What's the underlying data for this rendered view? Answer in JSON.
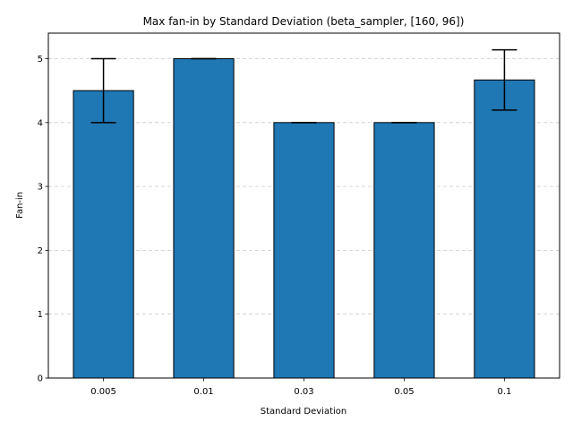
{
  "chart_data": {
    "type": "bar",
    "title": "Max fan-in by Standard Deviation (beta_sampler, [160, 96])",
    "xlabel": "Standard Deviation",
    "ylabel": "Fan-in",
    "categories": [
      "0.005",
      "0.01",
      "0.03",
      "0.05",
      "0.1"
    ],
    "values": [
      4.5,
      5.0,
      4.0,
      4.0,
      4.667
    ],
    "errors": [
      0.5,
      0.0,
      0.0,
      0.0,
      0.471
    ],
    "ylim": [
      0,
      5.4
    ],
    "yticks": [
      "0",
      "1",
      "2",
      "3",
      "4",
      "5"
    ],
    "grid": "y-dashed",
    "colors": {
      "bar": "#1f77b4",
      "edge": "#000000",
      "grid": "#cccccc"
    }
  }
}
